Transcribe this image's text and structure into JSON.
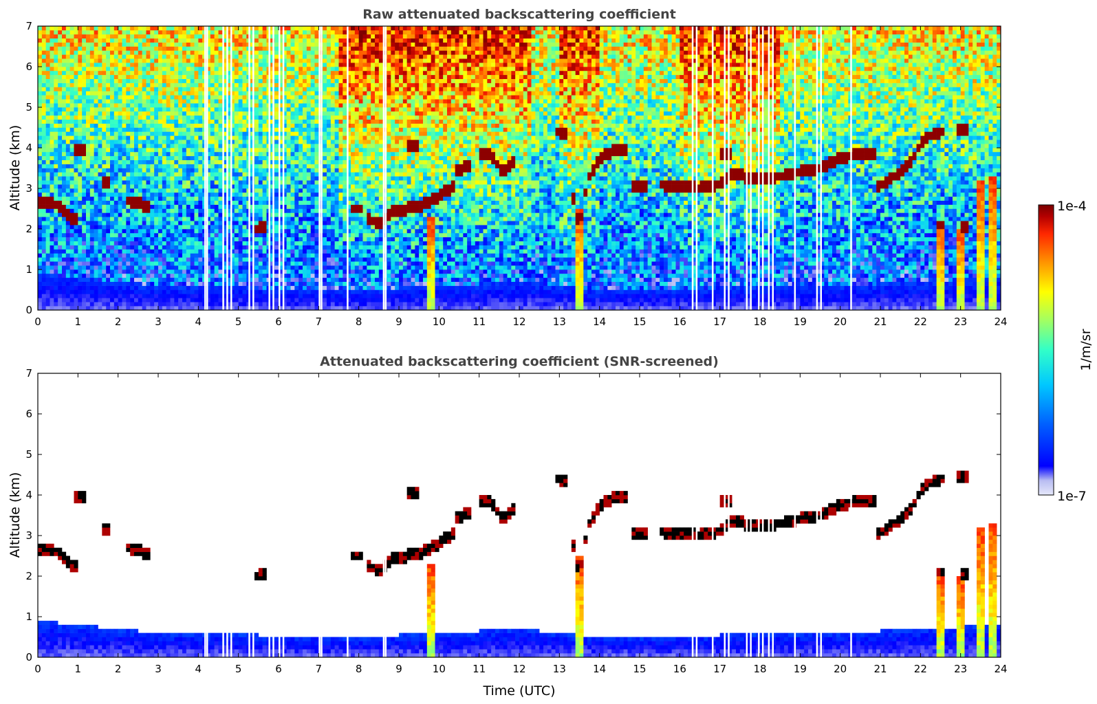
{
  "chart_data": [
    {
      "type": "heatmap",
      "title": "Raw attenuated backscattering coefficient",
      "xlabel": "",
      "ylabel": "Altitude (km)",
      "xlim": [
        0,
        24
      ],
      "ylim": [
        0,
        7
      ],
      "x_ticks": [
        "0",
        "1",
        "2",
        "3",
        "4",
        "5",
        "6",
        "7",
        "8",
        "9",
        "10",
        "11",
        "12",
        "13",
        "14",
        "15",
        "16",
        "17",
        "18",
        "19",
        "20",
        "21",
        "22",
        "23",
        "24"
      ],
      "y_ticks": [
        "0",
        "1",
        "2",
        "3",
        "4",
        "5",
        "6",
        "7"
      ],
      "features": {
        "boundary_layer_top_km": [
          [
            0,
            0.9
          ],
          [
            3,
            0.6
          ],
          [
            8,
            0.5
          ],
          [
            12,
            0.7
          ],
          [
            14,
            0.5
          ],
          [
            20,
            0.6
          ],
          [
            24,
            0.8
          ]
        ],
        "noise_high_hours": [
          [
            7.5,
            12.3
          ],
          [
            13,
            14
          ],
          [
            16,
            18.5
          ]
        ],
        "cloud_layers": [
          {
            "points": [
              [
                0,
                2.65
              ],
              [
                0.5,
                2.6
              ],
              [
                0.8,
                2.3
              ],
              [
                1,
                2.25
              ]
            ]
          },
          {
            "points": [
              [
                0.9,
                3.92
              ],
              [
                1.2,
                3.92
              ]
            ]
          },
          {
            "points": [
              [
                1.6,
                3.1
              ],
              [
                1.8,
                3.2
              ]
            ]
          },
          {
            "points": [
              [
                2.2,
                2.7
              ],
              [
                2.5,
                2.65
              ],
              [
                2.8,
                2.5
              ]
            ]
          },
          {
            "points": [
              [
                5.4,
                2.0
              ],
              [
                5.7,
                2.05
              ]
            ]
          },
          {
            "points": [
              [
                7.8,
                2.5
              ],
              [
                8.1,
                2.5
              ]
            ]
          },
          {
            "points": [
              [
                8.2,
                2.3
              ],
              [
                8.5,
                2.1
              ],
              [
                8.8,
                2.4
              ],
              [
                9.2,
                2.5
              ],
              [
                9.6,
                2.6
              ],
              [
                10,
                2.8
              ],
              [
                10.4,
                3.1
              ]
            ]
          },
          {
            "points": [
              [
                9.2,
                4.0
              ],
              [
                9.5,
                4.1
              ]
            ]
          },
          {
            "points": [
              [
                10.4,
                3.4
              ],
              [
                10.8,
                3.6
              ]
            ]
          },
          {
            "points": [
              [
                11,
                3.9
              ],
              [
                11.3,
                3.8
              ],
              [
                11.6,
                3.4
              ],
              [
                11.9,
                3.7
              ]
            ]
          },
          {
            "points": [
              [
                12.9,
                4.4
              ],
              [
                13.2,
                4.35
              ]
            ]
          },
          {
            "points": [
              [
                13.3,
                3.0
              ],
              [
                13.5,
                2.0
              ],
              [
                13.7,
                3.2
              ],
              [
                14,
                3.75
              ],
              [
                14.4,
                3.95
              ],
              [
                14.7,
                3.95
              ]
            ]
          },
          {
            "points": [
              [
                14.8,
                3.05
              ],
              [
                15.2,
                3.05
              ]
            ]
          },
          {
            "points": [
              [
                15.5,
                3.1
              ],
              [
                16,
                3.05
              ],
              [
                16.5,
                3.0
              ],
              [
                17,
                3.1
              ],
              [
                17.3,
                3.4
              ],
              [
                17.6,
                3.3
              ],
              [
                18,
                3.2
              ],
              [
                18.5,
                3.3
              ],
              [
                19,
                3.4
              ],
              [
                19.5,
                3.5
              ],
              [
                20,
                3.75
              ],
              [
                20.5,
                3.85
              ],
              [
                20.9,
                3.85
              ]
            ]
          },
          {
            "points": [
              [
                17.0,
                3.8
              ],
              [
                17.3,
                3.9
              ]
            ]
          },
          {
            "points": [
              [
                20.9,
                3.0
              ],
              [
                21.2,
                3.2
              ],
              [
                21.5,
                3.4
              ],
              [
                21.8,
                3.7
              ],
              [
                22,
                4.1
              ],
              [
                22.3,
                4.35
              ],
              [
                22.6,
                4.4
              ]
            ]
          },
          {
            "points": [
              [
                22.9,
                4.45
              ],
              [
                23.2,
                4.45
              ]
            ]
          },
          {
            "points": [
              [
                22.4,
                2.1
              ],
              [
                22.6,
                2.1
              ]
            ]
          },
          {
            "points": [
              [
                23.0,
                2.05
              ],
              [
                23.2,
                2.05
              ]
            ]
          }
        ],
        "precipitation_shafts": [
          [
            9.8,
            2.3
          ],
          [
            13.5,
            2.5
          ],
          [
            22.5,
            2.0
          ],
          [
            23.0,
            2.0
          ],
          [
            23.5,
            3.2
          ],
          [
            23.8,
            3.3
          ]
        ],
        "missing_data_hours": [
          4.15,
          4.2,
          4.6,
          4.7,
          4.8,
          5.25,
          5.35,
          5.75,
          5.85,
          6.0,
          6.1,
          7.0,
          7.05,
          7.7,
          8.6,
          8.65,
          16.3,
          16.4,
          16.8,
          17.1,
          17.2,
          17.65,
          17.75,
          17.95,
          18.05,
          18.2,
          18.3,
          18.85,
          19.4,
          19.5,
          20.25
        ]
      }
    },
    {
      "type": "heatmap",
      "title": "Attenuated backscattering coefficient (SNR-screened)",
      "xlabel": "Time (UTC)",
      "ylabel": "Altitude (km)",
      "xlim": [
        0,
        24
      ],
      "ylim": [
        0,
        7
      ],
      "x_ticks": [
        "0",
        "1",
        "2",
        "3",
        "4",
        "5",
        "6",
        "7",
        "8",
        "9",
        "10",
        "11",
        "12",
        "13",
        "14",
        "15",
        "16",
        "17",
        "18",
        "19",
        "20",
        "21",
        "22",
        "23",
        "24"
      ],
      "y_ticks": [
        "0",
        "1",
        "2",
        "3",
        "4",
        "5",
        "6",
        "7"
      ],
      "screened": true
    }
  ],
  "colorbar": {
    "label": "1/m/sr",
    "max_label": "1e-4",
    "min_label": "1e-7",
    "scale": "log",
    "range": [
      1e-07,
      0.0001
    ],
    "colormap": "jet",
    "colors": [
      "#e6e8fa",
      "#b8bcf2",
      "#0000ff",
      "#0064ff",
      "#00c8ff",
      "#32ffc8",
      "#a0ff64",
      "#ffff00",
      "#ff9600",
      "#ff2800",
      "#b40000",
      "#7a0000"
    ]
  }
}
